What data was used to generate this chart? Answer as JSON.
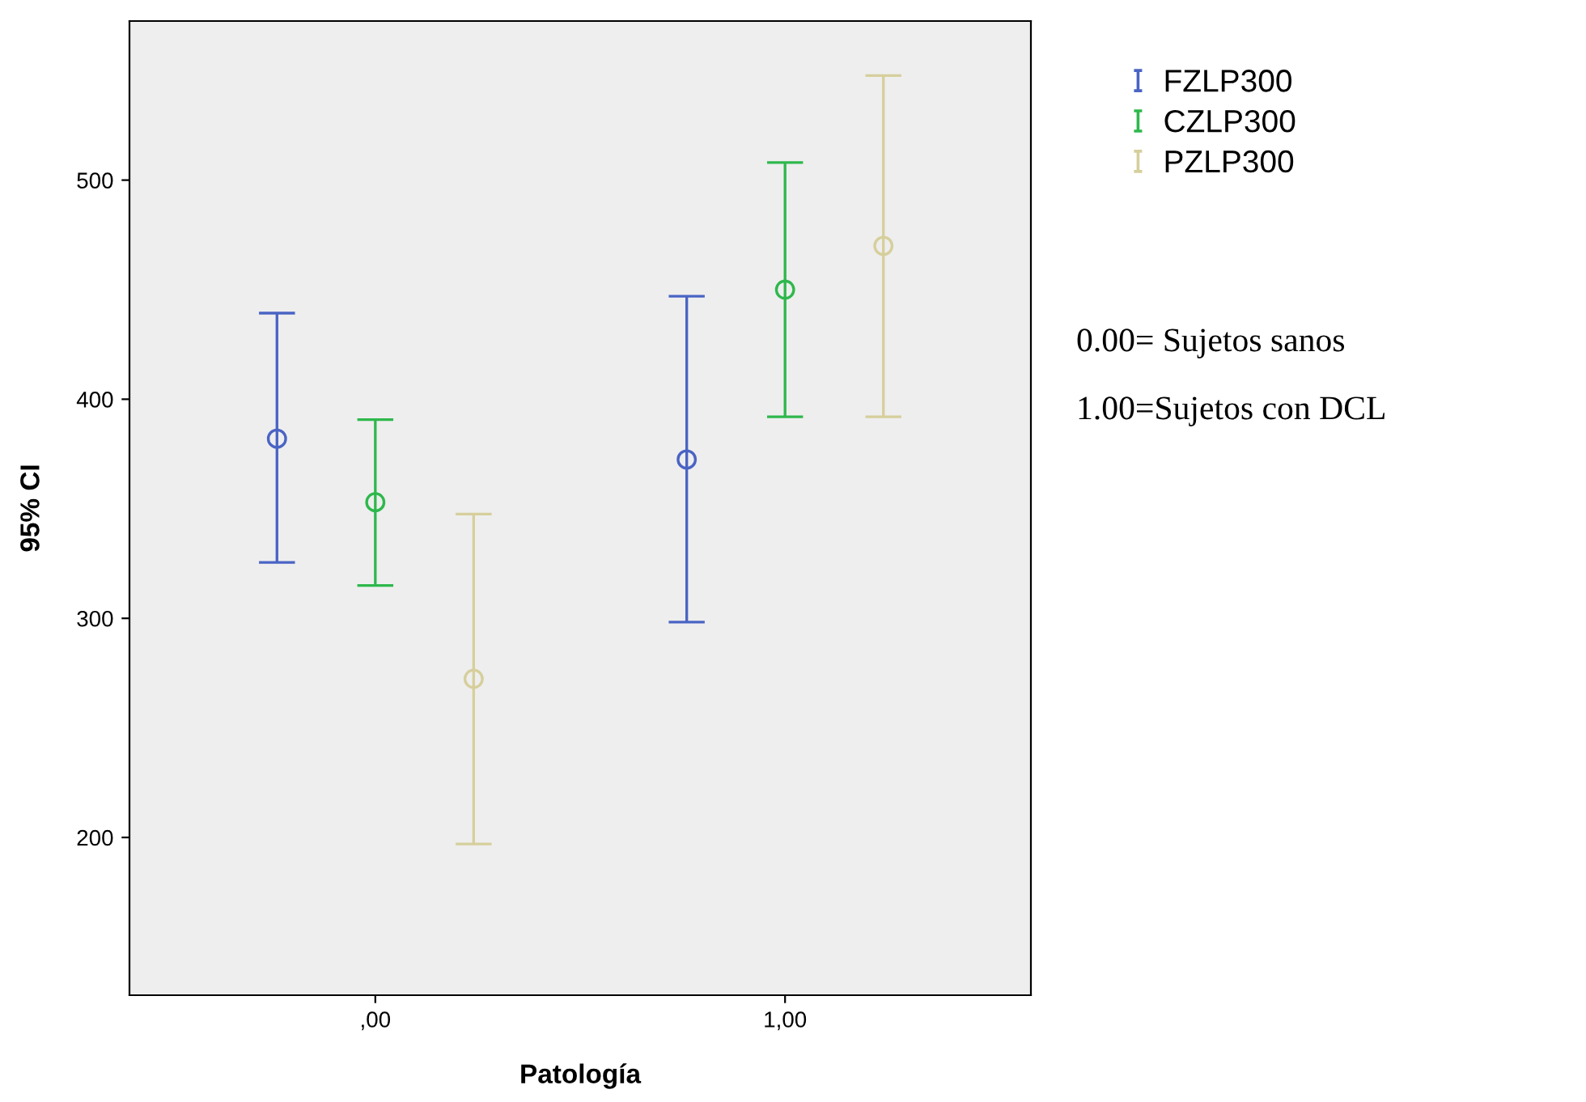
{
  "chart_data": {
    "type": "scatter",
    "xlabel": "Patología",
    "ylabel": "95% CI",
    "categories": [
      ",00",
      "1,00"
    ],
    "series": [
      {
        "name": "FZLP300",
        "color": "#4a64c4",
        "values": [
          382,
          372.5
        ],
        "errors": [
          [
            325.5,
            439.3
          ],
          [
            298.3,
            447
          ]
        ]
      },
      {
        "name": "CZLP300",
        "color": "#2eb84c",
        "values": [
          353,
          450
        ],
        "errors": [
          [
            315,
            390.7
          ],
          [
            392,
            508
          ]
        ]
      },
      {
        "name": "PZLP300",
        "color": "#d6cf9c",
        "values": [
          272.4,
          470
        ],
        "errors": [
          [
            197,
            347.6
          ],
          [
            392,
            547.7
          ]
        ]
      }
    ],
    "ylim": [
      128,
      572.6
    ],
    "yticks": [
      200,
      300,
      400,
      500
    ],
    "marker": "circle",
    "grid": false,
    "legend": "top right",
    "annotations": [
      "0.00= Sujetos sanos",
      "1.00=Sujetos con DCL"
    ]
  }
}
